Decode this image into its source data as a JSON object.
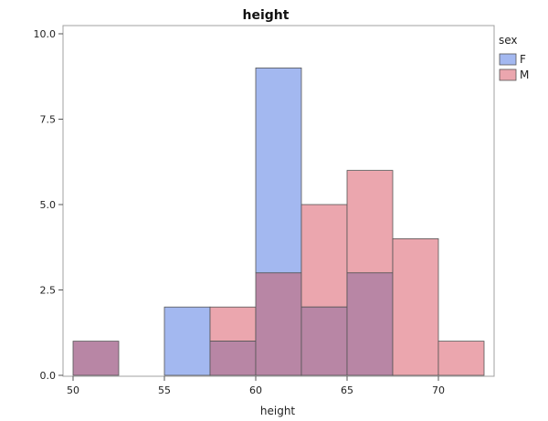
{
  "chart_data": {
    "type": "bar",
    "title": "height",
    "xlabel": "height",
    "ylabel": "",
    "xlim": [
      50,
      72.5
    ],
    "ylim": [
      0,
      10
    ],
    "bin_width": 2.5,
    "bin_starts": [
      50,
      52.5,
      55,
      57.5,
      60,
      62.5,
      65,
      67.5,
      70
    ],
    "x_ticks": [
      "50",
      "55",
      "60",
      "65",
      "70"
    ],
    "y_ticks": [
      "0.0",
      "2.5",
      "5.0",
      "7.5",
      "10.0"
    ],
    "series": [
      {
        "name": "F",
        "color": "#a3b8f0",
        "values": [
          1,
          0,
          2,
          1,
          9,
          2,
          3,
          0,
          0
        ]
      },
      {
        "name": "M",
        "color": "#eba6ae",
        "values": [
          1,
          0,
          0,
          2,
          3,
          5,
          6,
          4,
          1
        ]
      }
    ],
    "overlap_color": "#b886a5",
    "legend": {
      "title": "sex",
      "position": "top-right"
    },
    "grid": false
  }
}
